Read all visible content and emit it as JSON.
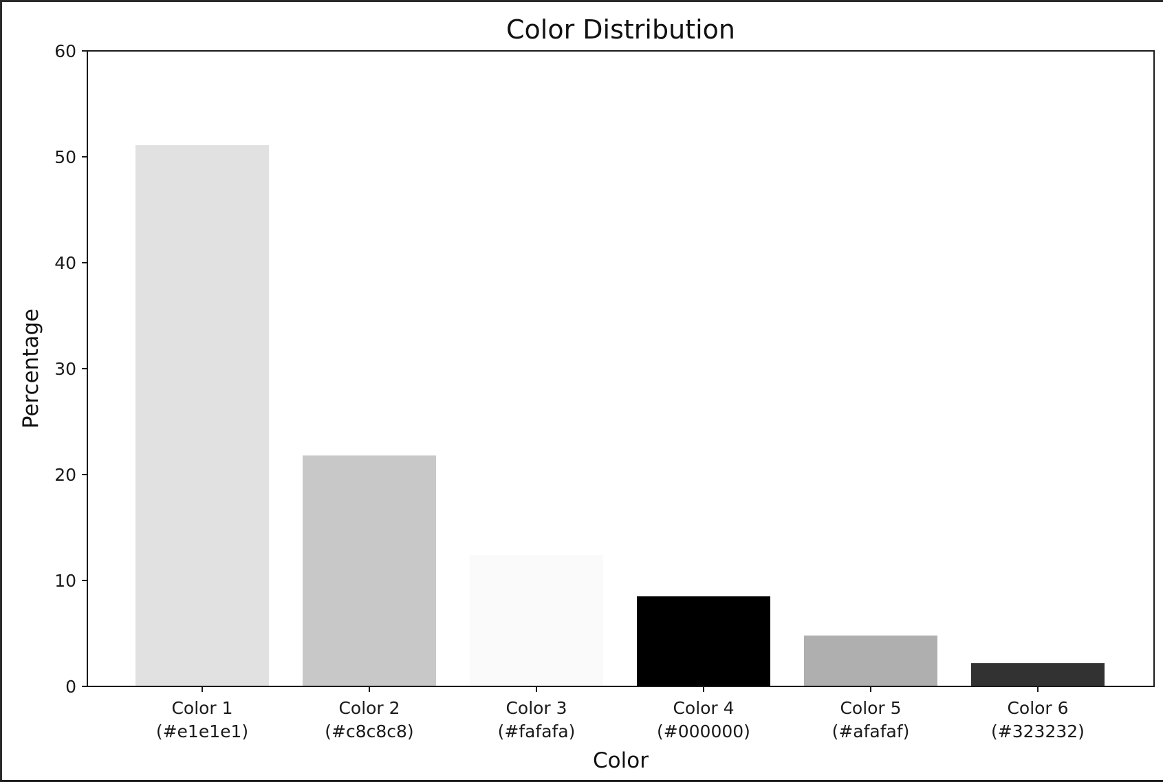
{
  "chart_data": {
    "type": "bar",
    "title": "Color Distribution",
    "xlabel": "Color",
    "ylabel": "Percentage",
    "ylim": [
      0,
      60
    ],
    "yticks": [
      0,
      10,
      20,
      30,
      40,
      50,
      60
    ],
    "grid": false,
    "categories": [
      {
        "line1": "Color 1",
        "line2": "(#e1e1e1)"
      },
      {
        "line1": "Color 2",
        "line2": "(#c8c8c8)"
      },
      {
        "line1": "Color 3",
        "line2": "(#fafafa)"
      },
      {
        "line1": "Color 4",
        "line2": "(#000000)"
      },
      {
        "line1": "Color 5",
        "line2": "(#afafaf)"
      },
      {
        "line1": "Color 6",
        "line2": "(#323232)"
      }
    ],
    "values": [
      51.1,
      21.8,
      12.4,
      8.5,
      4.8,
      2.2
    ],
    "colors": [
      "#e1e1e1",
      "#c8c8c8",
      "#fafafa",
      "#000000",
      "#afafaf",
      "#323232"
    ]
  }
}
